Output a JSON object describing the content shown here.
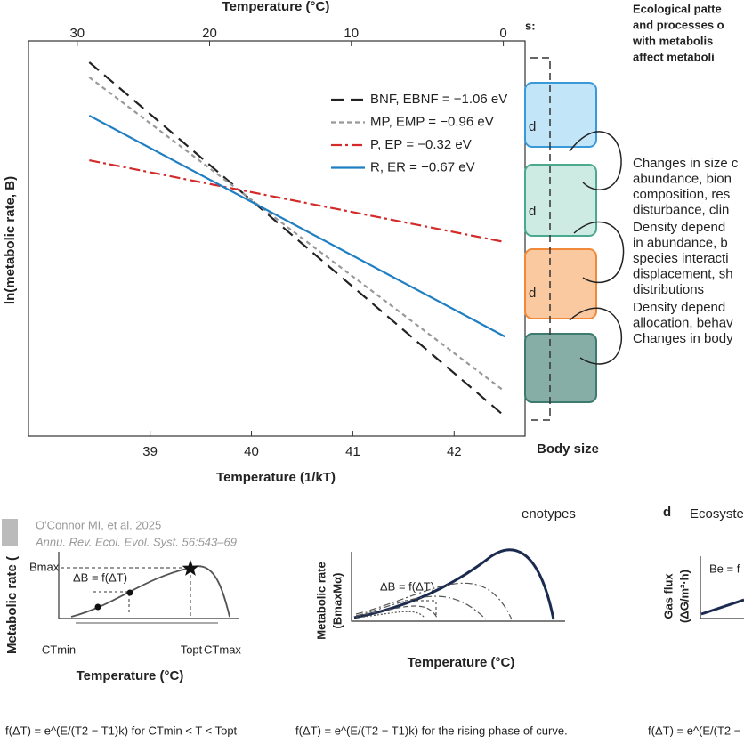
{
  "chart_data": {
    "type": "line",
    "x2_label": "Temperature (°C)",
    "x_label": "Temperature (1/kT)",
    "y_label": "ln(metabolic rate, B)",
    "x": [
      38.4,
      42.5
    ],
    "xlim": [
      37.8,
      42.7
    ],
    "xticks": [
      39,
      40,
      41,
      42
    ],
    "x2ticks": [
      30,
      20,
      10,
      0
    ],
    "ylim": [
      0,
      10
    ],
    "legend": "upper right",
    "series": [
      {
        "name": "BNF, EBNF = −1.06 eV",
        "color": "#222222",
        "dash": "14 8",
        "values": [
          9.46,
          0.5
        ]
      },
      {
        "name": "MP, EMP = −0.96 eV",
        "color": "#999999",
        "dash": "5 4",
        "values": [
          9.08,
          1.13
        ]
      },
      {
        "name": "P, EP = −0.32 eV",
        "color": "#d42a2a",
        "dash": "12 4 3 4",
        "values": [
          6.98,
          4.91
        ]
      },
      {
        "name": "R, ER = −0.67 eV",
        "color": "#1f7fc2",
        "dash": "none",
        "values": [
          8.11,
          2.52
        ]
      }
    ]
  },
  "side": {
    "header": [
      "Ecological patte",
      "and processes o",
      "with metabolis",
      "affect metaboli"
    ],
    "top_fragment": "s:",
    "box_fragments": [
      "d",
      "d",
      "d"
    ],
    "notes": [
      [
        "Changes in size c",
        "abundance, bion",
        "composition, res",
        "disturbance, clin"
      ],
      [
        "Density depend",
        "in abundance, b",
        "species interacti",
        "displacement, sh",
        "distributions"
      ],
      [
        "Density depend",
        "allocation, behav",
        "Changes in body"
      ]
    ],
    "axis_label": "Body size"
  },
  "citation": {
    "authors": "O'Connor MI, et al. 2025",
    "journal": "Annu. Rev. Ecol. Evol. Syst. 56:543–69"
  },
  "panel_b": {
    "y_label": "Metabolic rate (",
    "bmax": "Bmax",
    "delta": "ΔB = f(ΔT)",
    "ctmin": "CTmin",
    "topt": "Topt",
    "ctmax": "CTmax",
    "x_label": "Temperature (°C)",
    "formula": "f(ΔT) = e^(E/(T2 − T1)k) for CTmin < T < Topt"
  },
  "panel_c": {
    "title": "enotypes",
    "y_label": [
      "Metabolic rate",
      "(BmaxMα)"
    ],
    "delta": "ΔB = f(ΔT)",
    "x_label": "Temperature (°C)",
    "formula": "f(ΔT) = e^(E/(T2 − T1)k) for the rising phase of curve."
  },
  "panel_d": {
    "letter": "d",
    "title": "Ecosyste",
    "y_label": [
      "Gas flux",
      "(ΔG/m²·h)"
    ],
    "be": "Be = f",
    "formula": "f(ΔT) = e^(E/(T2 −"
  }
}
